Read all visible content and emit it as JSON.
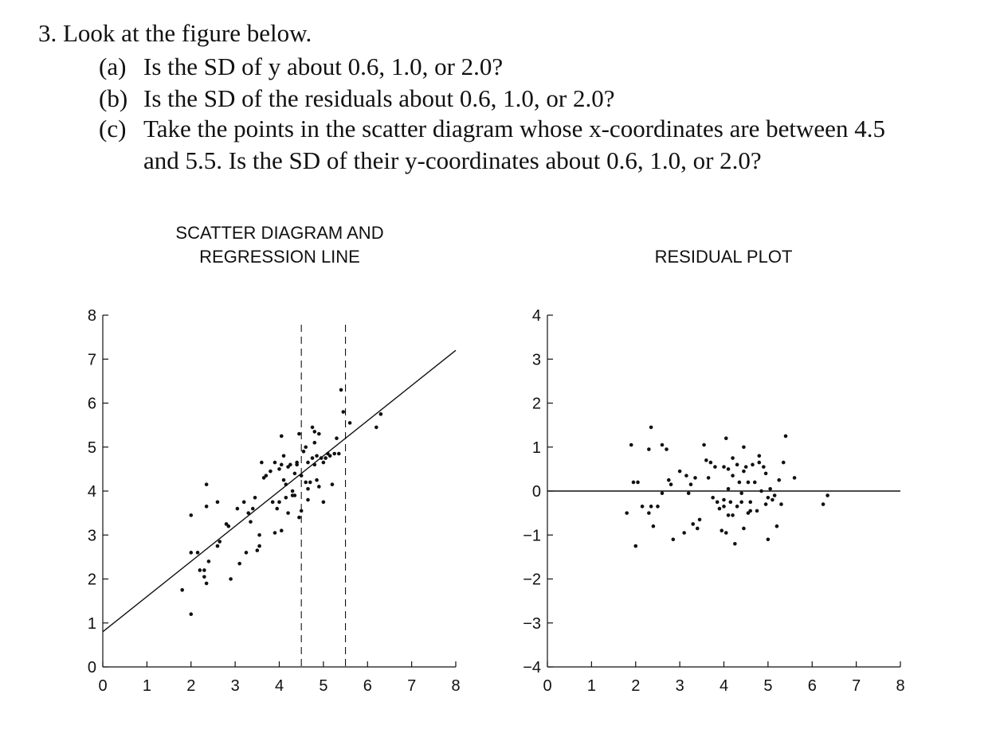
{
  "question": {
    "number": "3.",
    "stem": "Look at the figure below.",
    "parts": [
      {
        "label": "(a)",
        "lines": [
          "Is the SD of y about 0.6, 1.0, or 2.0?"
        ]
      },
      {
        "label": "(b)",
        "lines": [
          "Is the SD of the residuals about 0.6, 1.0, or 2.0?"
        ]
      },
      {
        "label": "(c)",
        "lines": [
          "Take the points in the scatter diagram whose x-coordinates are between 4.5",
          "and 5.5. Is the SD of their y-coordinates about 0.6, 1.0, or 2.0?"
        ]
      }
    ]
  },
  "chart_data": [
    {
      "type": "scatter",
      "title": "SCATTER DIAGRAM AND",
      "subtitle": "REGRESSION LINE",
      "xlabel": "",
      "ylabel": "",
      "xlim": [
        0,
        8
      ],
      "ylim": [
        0,
        8
      ],
      "xticks": [
        "0",
        "1",
        "2",
        "3",
        "4",
        "5",
        "6",
        "7",
        "8"
      ],
      "yticks": [
        "0",
        "1",
        "2",
        "3",
        "4",
        "5",
        "6",
        "7",
        "8"
      ],
      "regression_line": {
        "intercept": 0.8,
        "slope": 0.8,
        "x_range": [
          0,
          8
        ]
      },
      "vertical_dashed_lines": [
        4.5,
        5.5
      ],
      "grid": false,
      "points": [
        [
          1.8,
          1.75
        ],
        [
          2.0,
          1.2
        ],
        [
          2.0,
          3.45
        ],
        [
          2.0,
          2.6
        ],
        [
          2.15,
          2.6
        ],
        [
          2.2,
          2.2
        ],
        [
          2.3,
          2.2
        ],
        [
          2.3,
          2.05
        ],
        [
          2.35,
          1.9
        ],
        [
          2.4,
          2.4
        ],
        [
          2.35,
          3.65
        ],
        [
          2.35,
          4.15
        ],
        [
          2.6,
          2.75
        ],
        [
          2.6,
          3.75
        ],
        [
          2.65,
          2.85
        ],
        [
          2.8,
          3.25
        ],
        [
          2.85,
          3.2
        ],
        [
          2.9,
          2.0
        ],
        [
          3.05,
          3.6
        ],
        [
          3.1,
          2.35
        ],
        [
          3.2,
          3.75
        ],
        [
          3.25,
          2.6
        ],
        [
          3.3,
          3.5
        ],
        [
          3.35,
          3.3
        ],
        [
          3.4,
          3.6
        ],
        [
          3.45,
          3.85
        ],
        [
          3.5,
          2.65
        ],
        [
          3.55,
          2.75
        ],
        [
          3.55,
          3.0
        ],
        [
          3.6,
          4.65
        ],
        [
          3.65,
          4.3
        ],
        [
          3.7,
          4.35
        ],
        [
          3.8,
          4.45
        ],
        [
          3.85,
          3.75
        ],
        [
          3.9,
          3.05
        ],
        [
          3.95,
          3.6
        ],
        [
          4.0,
          4.5
        ],
        [
          4.0,
          3.75
        ],
        [
          4.05,
          4.6
        ],
        [
          4.05,
          5.25
        ],
        [
          4.05,
          3.1
        ],
        [
          4.1,
          4.25
        ],
        [
          4.15,
          4.15
        ],
        [
          4.15,
          3.85
        ],
        [
          4.2,
          4.55
        ],
        [
          4.2,
          3.5
        ],
        [
          4.25,
          4.6
        ],
        [
          4.3,
          4.0
        ],
        [
          4.35,
          3.9
        ],
        [
          4.35,
          4.4
        ],
        [
          4.4,
          4.65
        ],
        [
          4.45,
          3.4
        ],
        [
          4.45,
          5.3
        ],
        [
          4.5,
          3.55
        ],
        [
          4.55,
          4.9
        ],
        [
          4.6,
          4.2
        ],
        [
          4.6,
          5.0
        ],
        [
          4.65,
          4.05
        ],
        [
          4.65,
          3.8
        ],
        [
          4.7,
          4.2
        ],
        [
          4.75,
          4.75
        ],
        [
          4.8,
          4.6
        ],
        [
          4.8,
          5.1
        ],
        [
          4.8,
          5.35
        ],
        [
          4.85,
          4.8
        ],
        [
          4.85,
          4.25
        ],
        [
          4.9,
          5.3
        ],
        [
          4.95,
          4.75
        ],
        [
          5.0,
          4.65
        ],
        [
          5.0,
          3.75
        ],
        [
          5.05,
          4.75
        ],
        [
          5.1,
          4.85
        ],
        [
          5.15,
          4.8
        ],
        [
          5.2,
          4.15
        ],
        [
          5.25,
          4.85
        ],
        [
          5.3,
          5.2
        ],
        [
          5.35,
          4.85
        ],
        [
          5.4,
          6.3
        ],
        [
          5.45,
          5.8
        ],
        [
          5.6,
          5.55
        ],
        [
          6.2,
          5.45
        ],
        [
          6.3,
          5.75
        ],
        [
          4.3,
          3.9
        ],
        [
          4.5,
          4.35
        ],
        [
          4.65,
          4.65
        ],
        [
          4.75,
          5.45
        ],
        [
          4.9,
          4.1
        ],
        [
          3.9,
          4.65
        ],
        [
          4.1,
          4.8
        ],
        [
          4.4,
          4.6
        ]
      ]
    },
    {
      "type": "scatter",
      "title": "RESIDUAL PLOT",
      "xlabel": "",
      "ylabel": "",
      "xlim": [
        0,
        8
      ],
      "ylim": [
        -4,
        4
      ],
      "xticks": [
        "0",
        "1",
        "2",
        "3",
        "4",
        "5",
        "6",
        "7",
        "8"
      ],
      "yticks": [
        "−4",
        "−3",
        "−2",
        "−1",
        "0",
        "1",
        "2",
        "3",
        "4"
      ],
      "reference_line": 0,
      "grid": false,
      "points": [
        [
          1.8,
          -0.5
        ],
        [
          1.9,
          1.05
        ],
        [
          2.0,
          -1.25
        ],
        [
          1.95,
          0.2
        ],
        [
          2.05,
          0.2
        ],
        [
          2.15,
          -0.35
        ],
        [
          2.3,
          -0.5
        ],
        [
          2.3,
          0.95
        ],
        [
          2.35,
          1.45
        ],
        [
          2.35,
          -0.35
        ],
        [
          2.4,
          -0.8
        ],
        [
          2.5,
          -0.35
        ],
        [
          2.6,
          1.05
        ],
        [
          2.6,
          -0.05
        ],
        [
          2.7,
          0.95
        ],
        [
          2.75,
          0.25
        ],
        [
          2.8,
          0.15
        ],
        [
          2.85,
          -1.1
        ],
        [
          3.0,
          0.45
        ],
        [
          3.1,
          -0.95
        ],
        [
          3.15,
          0.35
        ],
        [
          3.2,
          -0.05
        ],
        [
          3.25,
          0.15
        ],
        [
          3.3,
          -0.75
        ],
        [
          3.35,
          0.3
        ],
        [
          3.4,
          -0.85
        ],
        [
          3.45,
          -0.65
        ],
        [
          3.55,
          1.05
        ],
        [
          3.6,
          0.7
        ],
        [
          3.65,
          0.3
        ],
        [
          3.7,
          0.65
        ],
        [
          3.75,
          -0.15
        ],
        [
          3.8,
          0.55
        ],
        [
          3.85,
          -0.25
        ],
        [
          3.95,
          -0.9
        ],
        [
          4.0,
          0.55
        ],
        [
          4.0,
          -0.35
        ],
        [
          4.05,
          -0.95
        ],
        [
          4.05,
          1.2
        ],
        [
          4.1,
          0.5
        ],
        [
          4.1,
          0.05
        ],
        [
          4.15,
          -0.25
        ],
        [
          4.2,
          0.35
        ],
        [
          4.2,
          -0.55
        ],
        [
          4.25,
          -1.2
        ],
        [
          4.3,
          0.6
        ],
        [
          4.3,
          -0.35
        ],
        [
          4.35,
          0.2
        ],
        [
          4.4,
          -0.25
        ],
        [
          4.45,
          -0.85
        ],
        [
          4.45,
          1.0
        ],
        [
          4.5,
          0.55
        ],
        [
          4.55,
          0.2
        ],
        [
          4.55,
          -0.5
        ],
        [
          4.6,
          -0.25
        ],
        [
          4.65,
          0.6
        ],
        [
          4.7,
          0.2
        ],
        [
          4.75,
          -0.45
        ],
        [
          4.8,
          0.65
        ],
        [
          4.8,
          0.8
        ],
        [
          4.85,
          0.0
        ],
        [
          4.9,
          0.55
        ],
        [
          4.95,
          -0.3
        ],
        [
          5.0,
          -1.1
        ],
        [
          5.0,
          -0.15
        ],
        [
          5.05,
          0.05
        ],
        [
          5.1,
          -0.2
        ],
        [
          5.15,
          -0.1
        ],
        [
          5.2,
          -0.8
        ],
        [
          5.25,
          0.25
        ],
        [
          5.3,
          -0.3
        ],
        [
          5.35,
          0.65
        ],
        [
          5.4,
          1.25
        ],
        [
          5.6,
          0.3
        ],
        [
          6.25,
          -0.3
        ],
        [
          6.35,
          -0.1
        ],
        [
          4.0,
          -0.2
        ],
        [
          4.2,
          0.75
        ],
        [
          4.4,
          -0.05
        ],
        [
          4.6,
          -0.45
        ],
        [
          4.95,
          0.4
        ],
        [
          3.9,
          -0.4
        ],
        [
          4.1,
          -0.55
        ],
        [
          4.45,
          0.45
        ]
      ]
    }
  ]
}
